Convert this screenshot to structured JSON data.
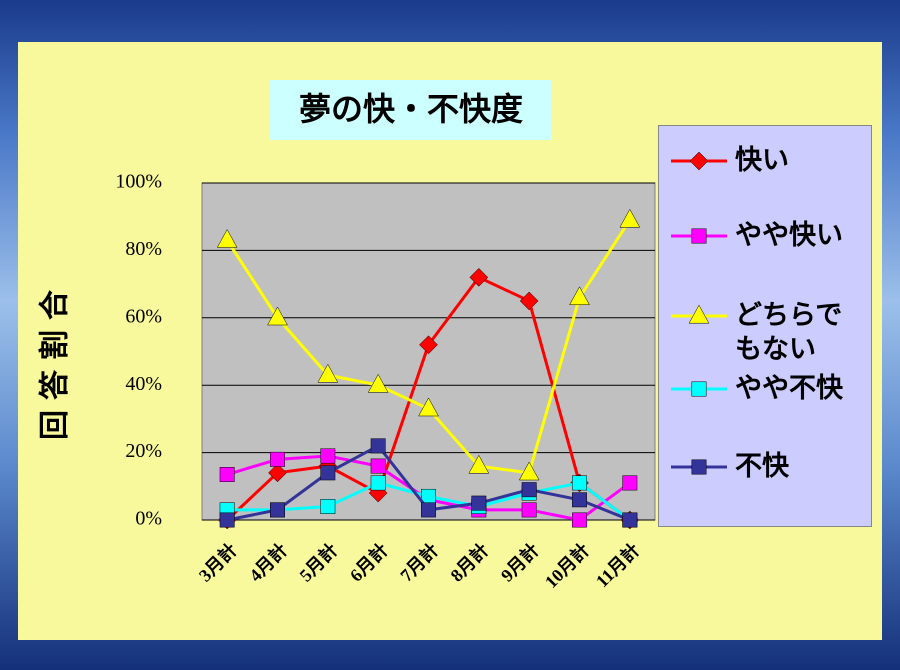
{
  "chart_data": {
    "type": "line",
    "title": "夢の快・不快度",
    "y_label": "回答割合",
    "categories": [
      "3月計",
      "4月計",
      "5月計",
      "6月計",
      "7月計",
      "8月計",
      "9月計",
      "10月計",
      "11月計"
    ],
    "series": [
      {
        "name": "快い",
        "color": "#ff0000",
        "marker": "diamond",
        "values": [
          0,
          14,
          16,
          8,
          52,
          72,
          65,
          11,
          0
        ]
      },
      {
        "name": "やや快い",
        "color": "#ff00ff",
        "marker": "square",
        "values": [
          13.5,
          18,
          19,
          16,
          6,
          3,
          3,
          0,
          11
        ]
      },
      {
        "name": "どちらでもない",
        "color": "#ffff00",
        "marker": "triangle",
        "values": [
          83,
          60,
          43,
          40,
          33,
          16,
          14,
          66,
          89
        ]
      },
      {
        "name": "やや不快",
        "color": "#00ffff",
        "marker": "square",
        "values": [
          3,
          3,
          4,
          11,
          7,
          4,
          8,
          11,
          0
        ]
      },
      {
        "name": "不快",
        "color": "#333399",
        "marker": "square",
        "values": [
          0,
          3,
          14,
          22,
          3,
          5,
          9,
          6,
          0
        ]
      }
    ],
    "ylim": [
      0,
      100
    ],
    "yticks": [
      {
        "value": 0,
        "label": "0%"
      },
      {
        "value": 20,
        "label": "20%"
      },
      {
        "value": 40,
        "label": "40%"
      },
      {
        "value": 60,
        "label": "60%"
      },
      {
        "value": 80,
        "label": "80%"
      },
      {
        "value": 100,
        "label": "100%"
      }
    ],
    "grid": true
  }
}
